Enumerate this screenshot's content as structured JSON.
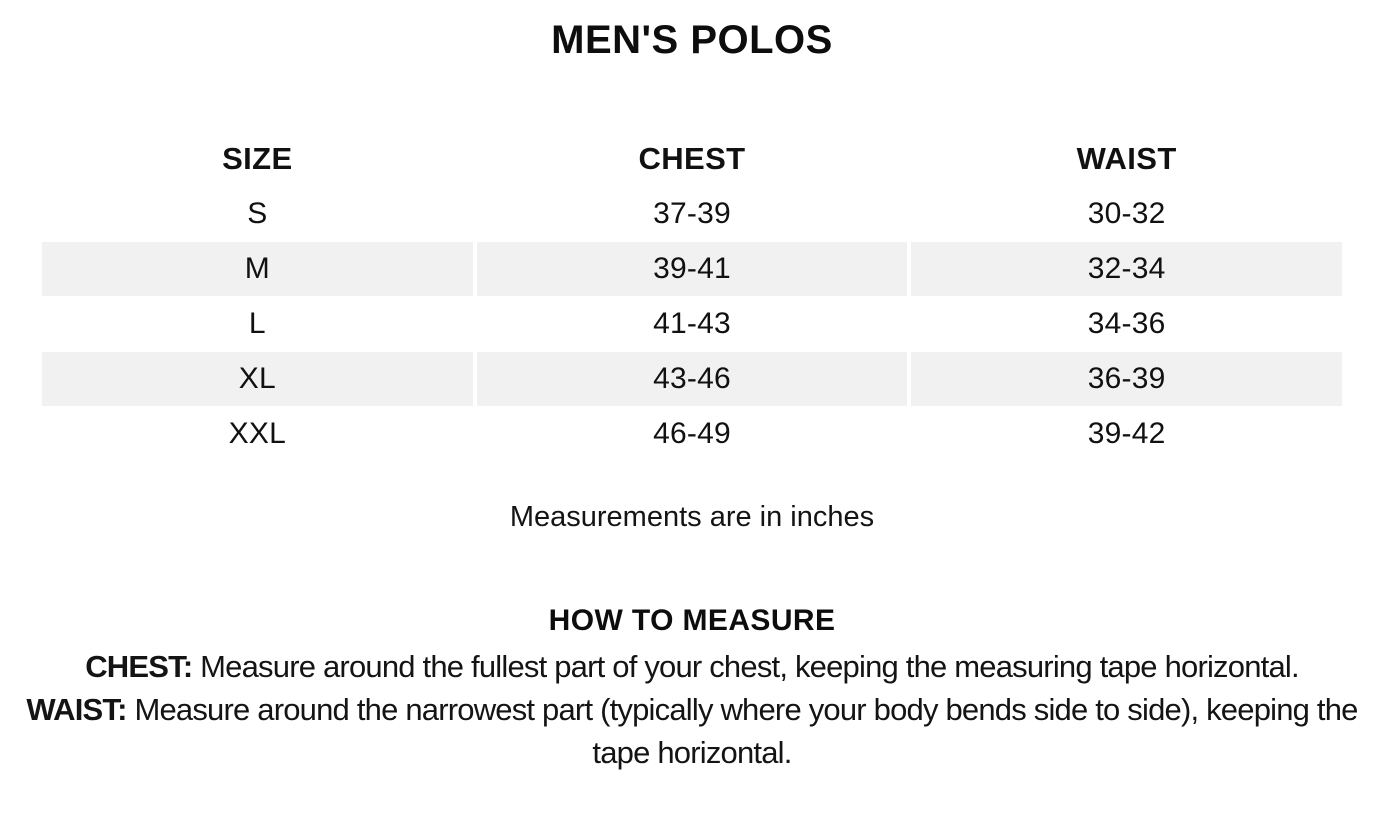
{
  "page": {
    "title": "MEN'S POLOS",
    "units_note": "Measurements are in inches"
  },
  "size_chart": {
    "columns": [
      "SIZE",
      "CHEST",
      "WAIST"
    ],
    "rows": [
      {
        "size": "S",
        "chest": "37-39",
        "waist": "30-32"
      },
      {
        "size": "M",
        "chest": "39-41",
        "waist": "32-34"
      },
      {
        "size": "L",
        "chest": "41-43",
        "waist": "34-36"
      },
      {
        "size": "XL",
        "chest": "43-46",
        "waist": "36-39"
      },
      {
        "size": "XXL",
        "chest": "46-49",
        "waist": "39-42"
      }
    ],
    "stripe_color": "#f1f1f1"
  },
  "how_to_measure": {
    "heading": "HOW TO MEASURE",
    "instructions": [
      {
        "label": "CHEST:",
        "text": " Measure around the fullest part of your chest, keeping the measuring tape horizontal."
      },
      {
        "label": "WAIST:",
        "text": " Measure around the narrowest part (typically where your body bends side to side), keeping the tape horizontal."
      }
    ]
  },
  "colors": {
    "background": "#ffffff",
    "text": "#111111",
    "row_stripe": "#f1f1f1",
    "bottom_divider": "#e7e7e7"
  }
}
